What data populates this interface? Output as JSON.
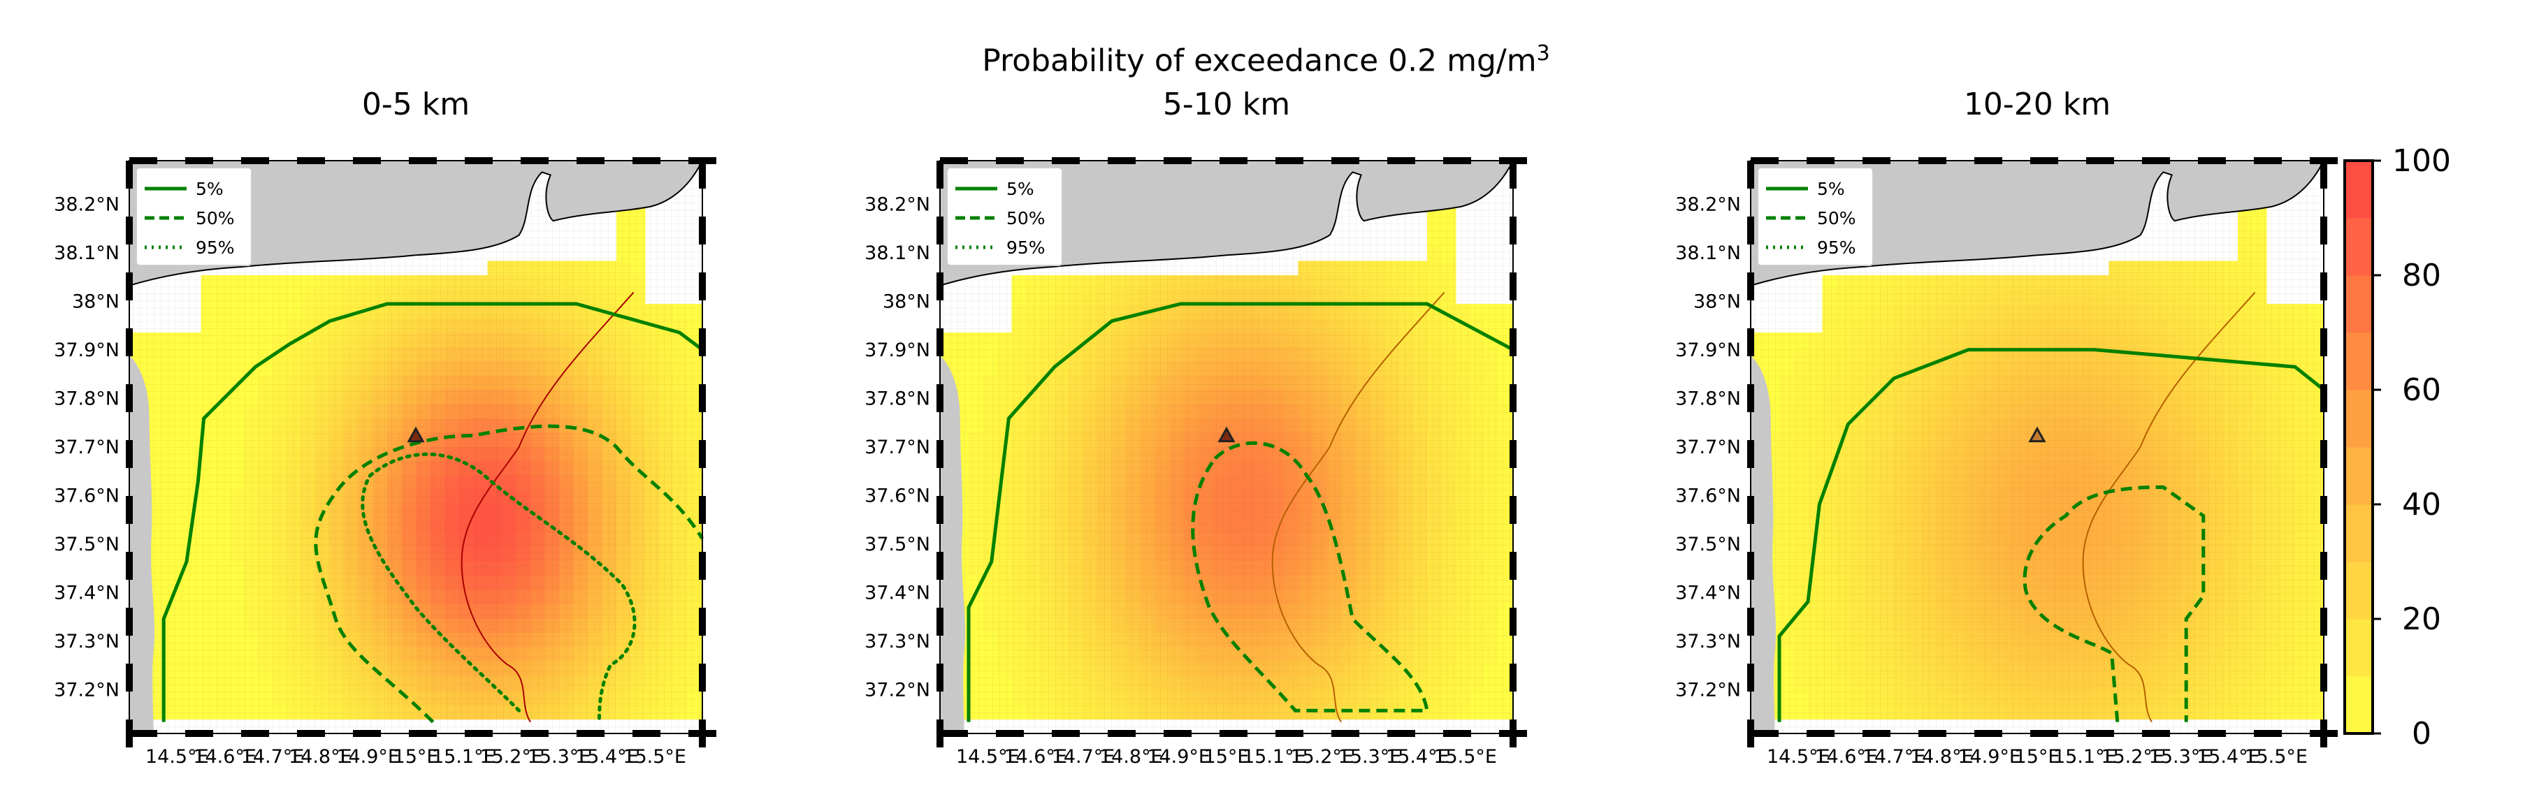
{
  "suptitle": {
    "text": "Probability of exceedance 0.2 mg/m",
    "sup": "3"
  },
  "panels": [
    {
      "id": "p1",
      "title": "0-5 km",
      "peak": 92,
      "x0": 185
    },
    {
      "id": "p2",
      "title": "5-10 km",
      "peak": 72,
      "x0": 1345
    },
    {
      "id": "p3",
      "title": "10-20 km",
      "peak": 48,
      "x0": 2505
    }
  ],
  "legend": [
    {
      "label": "5%",
      "dash": "solid"
    },
    {
      "label": "50%",
      "dash": "dashed"
    },
    {
      "label": "95%",
      "dash": "dotted"
    }
  ],
  "y_ticks": [
    "38.2°N",
    "38.1°N",
    "38°N",
    "37.9°N",
    "37.8°N",
    "37.7°N",
    "37.6°N",
    "37.5°N",
    "37.4°N",
    "37.3°N",
    "37.2°N"
  ],
  "x_ticks": [
    "14.5°E",
    "14.6°E",
    "14.7°E",
    "14.8°E",
    "14.9°E",
    "15°E",
    "15.1°E",
    "15.2°E",
    "15.3°E",
    "15.4°E",
    "15.5°E"
  ],
  "colorbar": {
    "ticks": [
      "100",
      "80",
      "60",
      "40",
      "20",
      "0"
    ],
    "min": 0,
    "max": 100
  },
  "colors": {
    "low": "#ffff44",
    "high": "#ff4444",
    "land": "#c8c8c8",
    "contour": "#008000"
  }
}
